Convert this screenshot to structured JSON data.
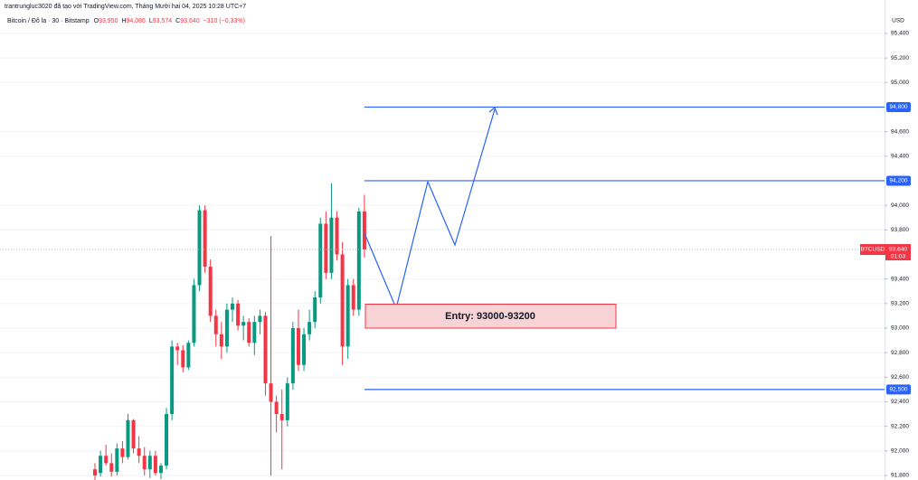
{
  "header": {
    "attribution": "trantrungluc3020 đã tạo với TradingView.com, Tháng Mười hai 04, 2025 10:28 UTC+7",
    "symbol": "Bitcoin / Đô la · 30 · Bitstamp",
    "open_key": "O",
    "open": "93,950",
    "high_key": "H",
    "high": "94,086",
    "low_key": "L",
    "low": "93,574",
    "close_key": "C",
    "close": "93,640",
    "change": "−310 (−0.33%)"
  },
  "chart_data": {
    "type": "candlestick",
    "currency": "USD",
    "up_color": "#089981",
    "down_color": "#f23645",
    "open": [
      91850,
      91820,
      91960,
      91900,
      91830,
      92020,
      91950,
      92250,
      92020,
      91960,
      91850,
      91960,
      91820,
      91880,
      92300,
      92850,
      92820,
      92680,
      92880,
      93350,
      93960,
      93500,
      93100,
      92950,
      92850,
      93150,
      93200,
      93020,
      93050,
      92880,
      93050,
      93100,
      92550,
      92400,
      92300,
      92250,
      92550,
      93000,
      92700,
      92950,
      93050,
      93250,
      93850,
      93450,
      93900,
      93600,
      92850,
      93350,
      93150,
      93950
    ],
    "high": [
      91900,
      92000,
      92050,
      91980,
      92060,
      92080,
      92300,
      92260,
      92120,
      92030,
      92000,
      92000,
      91900,
      92350,
      92900,
      92880,
      92860,
      92900,
      93400,
      94000,
      94000,
      93560,
      93150,
      93050,
      93200,
      93250,
      93230,
      93100,
      93080,
      93100,
      93150,
      93130,
      93750,
      92450,
      92500,
      92600,
      93050,
      93150,
      93000,
      93150,
      93300,
      93900,
      93950,
      94180,
      93950,
      93700,
      93400,
      93400,
      93980,
      94086
    ],
    "low": [
      91760,
      91790,
      91880,
      91790,
      91800,
      91900,
      91930,
      91980,
      91900,
      91800,
      91780,
      91800,
      91770,
      91850,
      92250,
      92700,
      92640,
      92660,
      92850,
      93300,
      93450,
      93050,
      92850,
      92750,
      92800,
      93050,
      92980,
      92900,
      92850,
      92780,
      92950,
      92450,
      91800,
      92150,
      91850,
      92200,
      92500,
      92650,
      92650,
      92900,
      93000,
      93200,
      93400,
      93400,
      93550,
      92700,
      92750,
      93100,
      93100,
      93574
    ],
    "close": [
      91800,
      91960,
      91900,
      91830,
      92020,
      91950,
      92250,
      92020,
      91960,
      91850,
      91960,
      91820,
      91880,
      92300,
      92850,
      92820,
      92680,
      92880,
      93350,
      93960,
      93500,
      93100,
      92950,
      92850,
      93150,
      93200,
      93020,
      93050,
      92880,
      93050,
      93100,
      92550,
      92400,
      92300,
      92250,
      92550,
      93000,
      92700,
      92950,
      93050,
      93250,
      93850,
      93450,
      93900,
      93600,
      92850,
      93350,
      93150,
      93950,
      93640
    ],
    "ylim": [
      91763,
      95672
    ],
    "yticks": [
      {
        "value": 91800,
        "label": "91,800"
      },
      {
        "value": 92000,
        "label": "92,000"
      },
      {
        "value": 92200,
        "label": "92,200"
      },
      {
        "value": 92400,
        "label": "92,400"
      },
      {
        "value": 92600,
        "label": "92,600"
      },
      {
        "value": 92800,
        "label": "92,800"
      },
      {
        "value": 93000,
        "label": "93,000"
      },
      {
        "value": 93200,
        "label": "93,200"
      },
      {
        "value": 93400,
        "label": "93,400"
      },
      {
        "value": 93800,
        "label": "93,800"
      },
      {
        "value": 94000,
        "label": "94,000"
      },
      {
        "value": 94400,
        "label": "94,400"
      },
      {
        "value": 94600,
        "label": "94,600"
      },
      {
        "value": 95000,
        "label": "95,000"
      },
      {
        "value": 95200,
        "label": "95,200"
      },
      {
        "value": 95400,
        "label": "95,400"
      }
    ],
    "grid": true,
    "level_color": "#2962ff",
    "levels": [
      {
        "value": 94800,
        "label": "94,800"
      },
      {
        "value": 94200,
        "label": "94,200"
      },
      {
        "value": 92500,
        "label": "92,500"
      }
    ],
    "symbol": "BTCUSD",
    "last_price": {
      "value": 93640,
      "label": "93,640"
    },
    "countdown": "01:03",
    "entry_label": "Entry: 93000-93200"
  }
}
